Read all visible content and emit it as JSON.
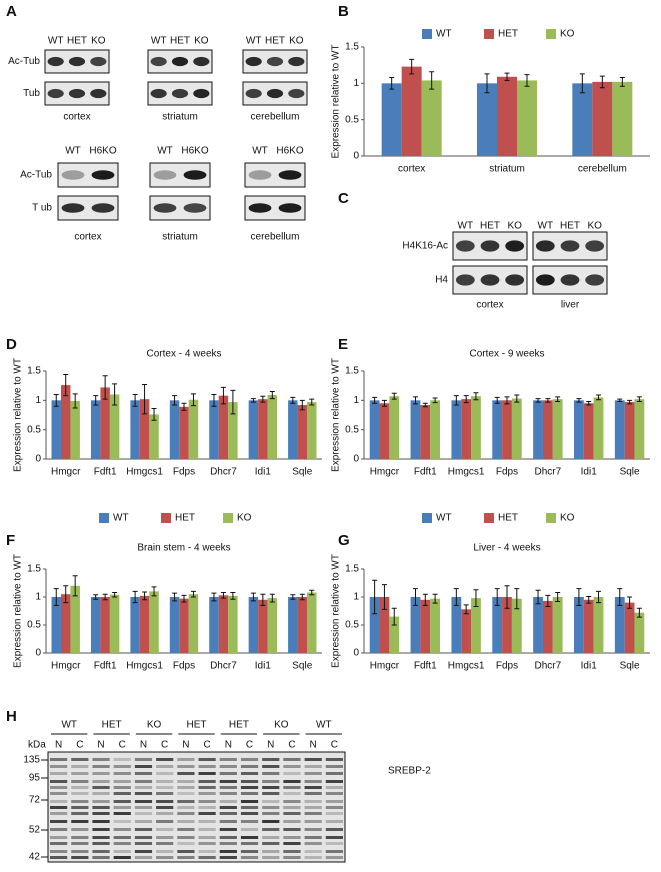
{
  "panel_labels": [
    "A",
    "B",
    "C",
    "D",
    "E",
    "F",
    "G",
    "H"
  ],
  "blots": {
    "acetyl_tubulin_het_ko": {
      "lanes": [
        "WT",
        "HET",
        "KO"
      ],
      "rows": [
        "Ac-Tub",
        "Tub"
      ],
      "tissues": [
        "cortex",
        "striatum",
        "cerebellum"
      ]
    },
    "acetyl_tubulin_h6ko": {
      "lanes": [
        "WT",
        "H6KO"
      ],
      "rows": [
        "Ac-Tub",
        "T ub"
      ],
      "tissues": [
        "cortex",
        "striatum",
        "cerebellum"
      ]
    },
    "histone": {
      "lanes": [
        "WT",
        "HET",
        "KO"
      ],
      "rows": [
        "H4K16-Ac",
        "H4"
      ],
      "tissues": [
        "cortex",
        "liver"
      ]
    },
    "srebp": {
      "groups": [
        "WT",
        "HET",
        "KO",
        "HET",
        "HET",
        "KO",
        "WT"
      ],
      "fractions": [
        "N",
        "C"
      ],
      "unit": "kDa",
      "markers": [
        135,
        95,
        72,
        52,
        42
      ],
      "label": "SREBP-2"
    }
  },
  "chart_data": [
    {
      "type": "bar",
      "ylabel": "Expression relative to WT",
      "legend": "top",
      "categories": [
        "cortex",
        "striatum",
        "cerebellum"
      ],
      "ylim": [
        0,
        1.5
      ],
      "yticks": [
        0,
        0.5,
        1,
        1.5
      ],
      "series": [
        {
          "name": "WT",
          "color": "#4a7ebb",
          "values": [
            1.0,
            1.0,
            1.0
          ],
          "errors": [
            0.08,
            0.13,
            0.13
          ]
        },
        {
          "name": "HET",
          "color": "#c0504d",
          "values": [
            1.23,
            1.09,
            1.02
          ],
          "errors": [
            0.1,
            0.05,
            0.08
          ]
        },
        {
          "name": "KO",
          "color": "#9bbb59",
          "values": [
            1.04,
            1.04,
            1.02
          ],
          "errors": [
            0.12,
            0.08,
            0.06
          ]
        }
      ]
    },
    {
      "type": "bar",
      "title": "Cortex - 4 weeks",
      "ylabel": "Expression relative to WT",
      "categories": [
        "Hmgcr",
        "Fdft1",
        "Hmgcs1",
        "Fdps",
        "Dhcr7",
        "Idi1",
        "Sqle"
      ],
      "ylim": [
        0,
        1.5
      ],
      "yticks": [
        0,
        0.5,
        1,
        1.5
      ],
      "series": [
        {
          "color": "#4a7ebb",
          "values": [
            1,
            1,
            1,
            1,
            1,
            1,
            1
          ],
          "errors": [
            0.1,
            0.08,
            0.1,
            0.08,
            0.1,
            0.03,
            0.05
          ]
        },
        {
          "color": "#c0504d",
          "values": [
            1.26,
            1.22,
            1.02,
            0.89,
            1.08,
            1.02,
            0.92
          ],
          "errors": [
            0.18,
            0.2,
            0.25,
            0.06,
            0.14,
            0.05,
            0.08
          ]
        },
        {
          "color": "#9bbb59",
          "values": [
            0.99,
            1.1,
            0.76,
            1.01,
            0.97,
            1.09,
            0.97
          ],
          "errors": [
            0.12,
            0.18,
            0.1,
            0.1,
            0.2,
            0.06,
            0.05
          ]
        }
      ]
    },
    {
      "type": "bar",
      "title": "Cortex - 9 weeks",
      "ylabel": "Expression relative to WT",
      "categories": [
        "Hmgcr",
        "Fdft1",
        "Hmgcs1",
        "Fdps",
        "Dhcr7",
        "Idi1",
        "Sqle"
      ],
      "ylim": [
        0,
        1.5
      ],
      "yticks": [
        0,
        0.5,
        1,
        1.5
      ],
      "series": [
        {
          "color": "#4a7ebb",
          "values": [
            1,
            1,
            1,
            1,
            1,
            1,
            1
          ],
          "errors": [
            0.05,
            0.06,
            0.08,
            0.05,
            0.03,
            0.03,
            0.02
          ]
        },
        {
          "color": "#c0504d",
          "values": [
            0.95,
            0.92,
            1.02,
            1.0,
            1.0,
            0.95,
            0.97
          ],
          "errors": [
            0.05,
            0.03,
            0.06,
            0.06,
            0.03,
            0.03,
            0.03
          ]
        },
        {
          "color": "#9bbb59",
          "values": [
            1.07,
            1.0,
            1.07,
            1.03,
            1.02,
            1.05,
            1.02
          ],
          "errors": [
            0.05,
            0.04,
            0.06,
            0.06,
            0.04,
            0.04,
            0.04
          ]
        }
      ]
    },
    {
      "type": "bar",
      "title": "Brain stem - 4 weeks",
      "ylabel": "Expression relative to WT",
      "legend": "top",
      "categories": [
        "Hmgcr",
        "Fdft1",
        "Hmgcs1",
        "Fdps",
        "Dhcr7",
        "Idi1",
        "Sqle"
      ],
      "ylim": [
        0,
        1.5
      ],
      "yticks": [
        0,
        0.5,
        1,
        1.5
      ],
      "series": [
        {
          "name": "WT",
          "color": "#4a7ebb",
          "values": [
            1,
            1,
            1,
            1,
            1,
            1,
            1
          ],
          "errors": [
            0.15,
            0.04,
            0.1,
            0.07,
            0.07,
            0.07,
            0.04
          ]
        },
        {
          "name": "HET",
          "color": "#c0504d",
          "values": [
            1.05,
            1.0,
            1.02,
            0.97,
            1.03,
            0.95,
            1.0
          ],
          "errors": [
            0.15,
            0.05,
            0.07,
            0.06,
            0.05,
            0.1,
            0.05
          ]
        },
        {
          "name": "KO",
          "color": "#9bbb59",
          "values": [
            1.2,
            1.04,
            1.1,
            1.05,
            1.02,
            0.98,
            1.08
          ],
          "errors": [
            0.18,
            0.04,
            0.08,
            0.05,
            0.06,
            0.07,
            0.04
          ]
        }
      ]
    },
    {
      "type": "bar",
      "title": "Liver - 4 weeks",
      "ylabel": "Expression relative to WT",
      "legend": "top",
      "categories": [
        "Hmgcr",
        "Fdft1",
        "Hmgcs1",
        "Fdps",
        "Dhcr7",
        "Idi1",
        "Sqle"
      ],
      "ylim": [
        0,
        1.5
      ],
      "yticks": [
        0,
        0.5,
        1,
        1.5
      ],
      "series": [
        {
          "name": "WT",
          "color": "#4a7ebb",
          "values": [
            1,
            1,
            1,
            1,
            1,
            1,
            1
          ],
          "errors": [
            0.3,
            0.15,
            0.15,
            0.15,
            0.12,
            0.15,
            0.15
          ]
        },
        {
          "name": "HET",
          "color": "#c0504d",
          "values": [
            1.0,
            0.95,
            0.78,
            1.0,
            0.93,
            0.95,
            0.9
          ],
          "errors": [
            0.22,
            0.1,
            0.08,
            0.2,
            0.1,
            0.06,
            0.1
          ]
        },
        {
          "name": "KO",
          "color": "#9bbb59",
          "values": [
            0.65,
            0.97,
            0.98,
            0.97,
            1.0,
            1.0,
            0.72
          ],
          "errors": [
            0.15,
            0.08,
            0.15,
            0.18,
            0.08,
            0.1,
            0.08
          ]
        }
      ]
    }
  ]
}
